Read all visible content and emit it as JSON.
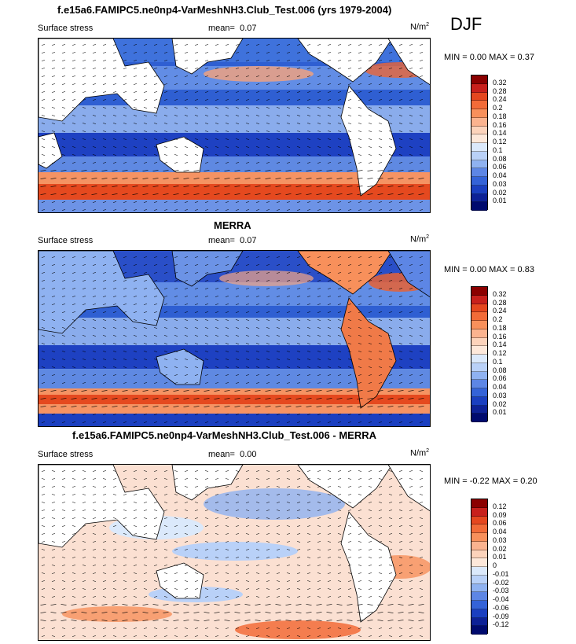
{
  "season": "DJF",
  "titles": {
    "top": "f.e15a6.FAMIPC5.ne0np4-VarMeshNH3.Club_Test.006 (yrs 1979-2004)",
    "mid": "MERRA",
    "bot": "f.e15a6.FAMIPC5.ne0np4-VarMeshNH3.Club_Test.006 - MERRA"
  },
  "chart_data": [
    {
      "type": "heatmap",
      "title": "f.e15a6.FAMIPC5.ne0np4-VarMeshNH3.Club_Test.006 (yrs 1979-2004)",
      "left_label": "Surface stress",
      "mean_label": "mean=",
      "mean_value": "0.07",
      "units_base": "N/m",
      "units_exp": "2",
      "min_max": "MIN =   0.00 MAX =   0.37",
      "colorbar_levels": [
        "0.32",
        "0.28",
        "0.24",
        "0.2",
        "0.18",
        "0.16",
        "0.14",
        "0.12",
        "0.1",
        "0.08",
        "0.06",
        "0.04",
        "0.03",
        "0.02",
        "0.01"
      ],
      "colors": [
        "#8b0000",
        "#c8201c",
        "#e5471f",
        "#f26b38",
        "#f8905b",
        "#fbb38f",
        "#fcd3bb",
        "#fde8da",
        "#dbe9fb",
        "#b9d1f8",
        "#8fb2f1",
        "#5d86e5",
        "#3463d8",
        "#1a3fc0",
        "#0d2196",
        "#000a6e"
      ]
    },
    {
      "type": "heatmap",
      "title": "MERRA",
      "left_label": "Surface stress",
      "mean_label": "mean=",
      "mean_value": "0.07",
      "units_base": "N/m",
      "units_exp": "2",
      "min_max": "MIN =   0.00 MAX =   0.83",
      "colorbar_levels": [
        "0.32",
        "0.28",
        "0.24",
        "0.2",
        "0.18",
        "0.16",
        "0.14",
        "0.12",
        "0.1",
        "0.08",
        "0.06",
        "0.04",
        "0.03",
        "0.02",
        "0.01"
      ],
      "colors": [
        "#8b0000",
        "#c8201c",
        "#e5471f",
        "#f26b38",
        "#f8905b",
        "#fbb38f",
        "#fcd3bb",
        "#fde8da",
        "#dbe9fb",
        "#b9d1f8",
        "#8fb2f1",
        "#5d86e5",
        "#3463d8",
        "#1a3fc0",
        "#0d2196",
        "#000a6e"
      ]
    },
    {
      "type": "heatmap",
      "title": "f.e15a6.FAMIPC5.ne0np4-VarMeshNH3.Club_Test.006 - MERRA",
      "left_label": "Surface stress",
      "mean_label": "mean=",
      "mean_value": "0.00",
      "units_base": "N/m",
      "units_exp": "2",
      "min_max": "MIN =  -0.22 MAX =   0.20",
      "colorbar_levels": [
        "0.12",
        "0.09",
        "0.06",
        "0.04",
        "0.03",
        "0.02",
        "0.01",
        "0",
        "-0.01",
        "-0.02",
        "-0.03",
        "-0.04",
        "-0.06",
        "-0.09",
        "-0.12"
      ],
      "colors": [
        "#8b0000",
        "#c8201c",
        "#e5471f",
        "#f26b38",
        "#f8905b",
        "#fbb38f",
        "#fcd3bb",
        "#fde8da",
        "#dbe9fb",
        "#b9d1f8",
        "#8fb2f1",
        "#5d86e5",
        "#3463d8",
        "#1a3fc0",
        "#0d2196",
        "#000a6e"
      ]
    }
  ]
}
